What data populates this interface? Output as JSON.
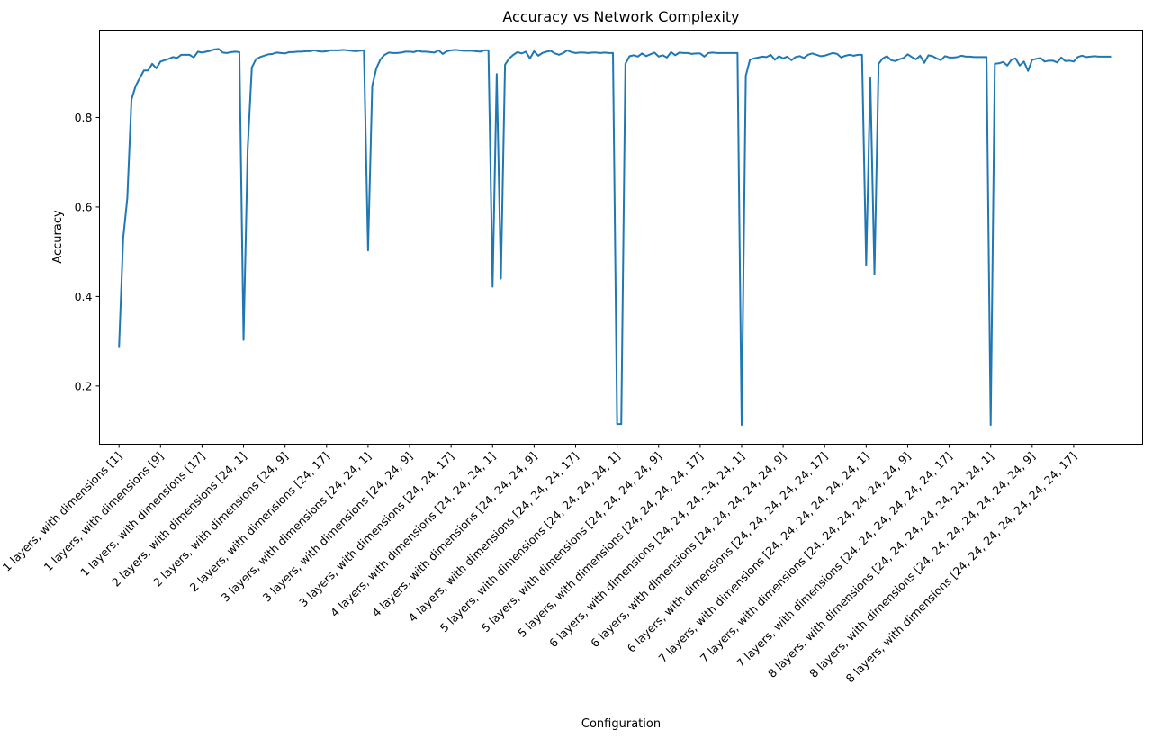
{
  "chart_data": {
    "type": "line",
    "title": "Accuracy vs Network Complexity",
    "xlabel": "Configuration",
    "ylabel": "Accuracy",
    "ylim": [
      0.07,
      0.995
    ],
    "yticks": [
      0.2,
      0.4,
      0.6,
      0.8
    ],
    "ytick_labels": [
      "0.2",
      "0.4",
      "0.6",
      "0.8"
    ],
    "xlim": [
      -4.7,
      246.6
    ],
    "xticks": [
      0,
      10,
      20,
      30,
      40,
      50,
      60,
      70,
      80,
      90,
      100,
      110,
      120,
      130,
      140,
      150,
      160,
      170,
      180,
      190,
      200,
      210,
      220,
      230
    ],
    "xtick_labels": [
      "1 layers, with dimensions [1]",
      "1 layers, with dimensions [9]",
      "1 layers, with dimensions [17]",
      "2 layers, with dimensions [24, 1]",
      "2 layers, with dimensions [24, 9]",
      "2 layers, with dimensions [24, 17]",
      "3 layers, with dimensions [24, 24, 1]",
      "3 layers, with dimensions [24, 24, 9]",
      "3 layers, with dimensions [24, 24, 17]",
      "4 layers, with dimensions [24, 24, 24, 1]",
      "4 layers, with dimensions [24, 24, 24, 9]",
      "4 layers, with dimensions [24, 24, 24, 17]",
      "5 layers, with dimensions [24, 24, 24, 24, 1]",
      "5 layers, with dimensions [24, 24, 24, 24, 9]",
      "5 layers, with dimensions [24, 24, 24, 24, 17]",
      "6 layers, with dimensions [24, 24, 24, 24, 24, 1]",
      "6 layers, with dimensions [24, 24, 24, 24, 24, 9]",
      "6 layers, with dimensions [24, 24, 24, 24, 24, 17]",
      "7 layers, with dimensions [24, 24, 24, 24, 24, 24, 1]",
      "7 layers, with dimensions [24, 24, 24, 24, 24, 24, 9]",
      "7 layers, with dimensions [24, 24, 24, 24, 24, 24, 17]",
      "8 layers, with dimensions [24, 24, 24, 24, 24, 24, 24, 1]",
      "8 layers, with dimensions [24, 24, 24, 24, 24, 24, 24, 9]",
      "8 layers, with dimensions [24, 24, 24, 24, 24, 24, 24, 17]"
    ],
    "grid": false,
    "series": [
      {
        "color": "#1f77b4",
        "x": [
          0,
          1,
          2,
          3,
          4,
          5,
          6,
          7,
          8,
          9,
          10,
          11,
          12,
          13,
          14,
          15,
          16,
          17,
          18,
          19,
          20,
          21,
          22,
          23,
          24,
          25,
          26,
          27,
          28,
          29,
          30,
          31,
          32,
          33,
          34,
          35,
          36,
          37,
          38,
          39,
          40,
          41,
          42,
          43,
          44,
          45,
          46,
          47,
          48,
          49,
          50,
          51,
          52,
          53,
          54,
          55,
          56,
          57,
          58,
          59,
          60,
          61,
          62,
          63,
          64,
          65,
          66,
          67,
          68,
          69,
          70,
          71,
          72,
          73,
          74,
          75,
          76,
          77,
          78,
          79,
          80,
          81,
          82,
          83,
          84,
          85,
          86,
          87,
          88,
          89,
          90,
          91,
          92,
          93,
          94,
          95,
          96,
          97,
          98,
          99,
          100,
          101,
          102,
          103,
          104,
          105,
          106,
          107,
          108,
          109,
          110,
          111,
          112,
          113,
          114,
          115,
          116,
          117,
          118,
          119,
          120,
          121,
          122,
          123,
          124,
          125,
          126,
          127,
          128,
          129,
          130,
          131,
          132,
          133,
          134,
          135,
          136,
          137,
          138,
          139,
          140,
          141,
          142,
          143,
          144,
          145,
          146,
          147,
          148,
          149,
          150,
          151,
          152,
          153,
          154,
          155,
          156,
          157,
          158,
          159,
          160,
          161,
          162,
          163,
          164,
          165,
          166,
          167,
          168,
          169,
          170,
          171,
          172,
          173,
          174,
          175,
          176,
          177,
          178,
          179,
          180,
          181,
          182,
          183,
          184,
          185,
          186,
          187,
          188,
          189,
          190,
          191,
          192,
          193,
          194,
          195,
          196,
          197,
          198,
          199,
          200,
          201,
          202,
          203,
          204,
          205,
          206,
          207,
          208,
          209,
          210,
          211,
          212,
          213,
          214,
          215,
          216,
          217,
          218,
          219,
          220,
          221,
          222,
          223,
          224,
          225,
          226,
          227,
          228,
          229,
          230,
          231,
          232,
          233,
          234,
          235,
          236,
          237,
          238,
          239
        ],
        "y": [
          0.285,
          0.53,
          0.62,
          0.84,
          0.87,
          0.888,
          0.905,
          0.905,
          0.92,
          0.91,
          0.925,
          0.928,
          0.931,
          0.935,
          0.933,
          0.94,
          0.94,
          0.94,
          0.934,
          0.947,
          0.945,
          0.947,
          0.949,
          0.952,
          0.953,
          0.945,
          0.944,
          0.946,
          0.947,
          0.946,
          0.303,
          0.73,
          0.912,
          0.93,
          0.935,
          0.938,
          0.941,
          0.942,
          0.945,
          0.944,
          0.943,
          0.946,
          0.946,
          0.947,
          0.947,
          0.948,
          0.948,
          0.95,
          0.948,
          0.947,
          0.948,
          0.95,
          0.95,
          0.95,
          0.951,
          0.95,
          0.949,
          0.948,
          0.949,
          0.95,
          0.503,
          0.87,
          0.91,
          0.93,
          0.94,
          0.945,
          0.944,
          0.944,
          0.945,
          0.947,
          0.947,
          0.946,
          0.949,
          0.947,
          0.947,
          0.946,
          0.945,
          0.95,
          0.942,
          0.948,
          0.95,
          0.951,
          0.95,
          0.949,
          0.949,
          0.949,
          0.948,
          0.947,
          0.95,
          0.95,
          0.422,
          0.897,
          0.44,
          0.918,
          0.932,
          0.94,
          0.946,
          0.943,
          0.947,
          0.932,
          0.948,
          0.938,
          0.944,
          0.947,
          0.949,
          0.943,
          0.94,
          0.944,
          0.95,
          0.946,
          0.944,
          0.945,
          0.945,
          0.944,
          0.945,
          0.945,
          0.944,
          0.945,
          0.944,
          0.944,
          0.115,
          0.115,
          0.92,
          0.937,
          0.939,
          0.936,
          0.943,
          0.937,
          0.941,
          0.945,
          0.936,
          0.939,
          0.934,
          0.946,
          0.939,
          0.945,
          0.944,
          0.944,
          0.942,
          0.943,
          0.943,
          0.936,
          0.944,
          0.945,
          0.944,
          0.944,
          0.944,
          0.944,
          0.944,
          0.944,
          0.113,
          0.893,
          0.929,
          0.932,
          0.934,
          0.936,
          0.935,
          0.94,
          0.929,
          0.937,
          0.932,
          0.936,
          0.928,
          0.935,
          0.937,
          0.933,
          0.94,
          0.943,
          0.94,
          0.937,
          0.938,
          0.941,
          0.944,
          0.942,
          0.934,
          0.938,
          0.94,
          0.938,
          0.94,
          0.94,
          0.47,
          0.888,
          0.45,
          0.92,
          0.932,
          0.937,
          0.928,
          0.926,
          0.93,
          0.933,
          0.941,
          0.935,
          0.93,
          0.938,
          0.922,
          0.939,
          0.937,
          0.932,
          0.928,
          0.937,
          0.934,
          0.934,
          0.935,
          0.938,
          0.936,
          0.936,
          0.935,
          0.935,
          0.935,
          0.935,
          0.113,
          0.92,
          0.921,
          0.924,
          0.916,
          0.929,
          0.932,
          0.916,
          0.925,
          0.904,
          0.929,
          0.931,
          0.933,
          0.925,
          0.927,
          0.927,
          0.923,
          0.934,
          0.926,
          0.927,
          0.925,
          0.935,
          0.938,
          0.935,
          0.936,
          0.937,
          0.936,
          0.936,
          0.936,
          0.936
        ]
      }
    ]
  }
}
